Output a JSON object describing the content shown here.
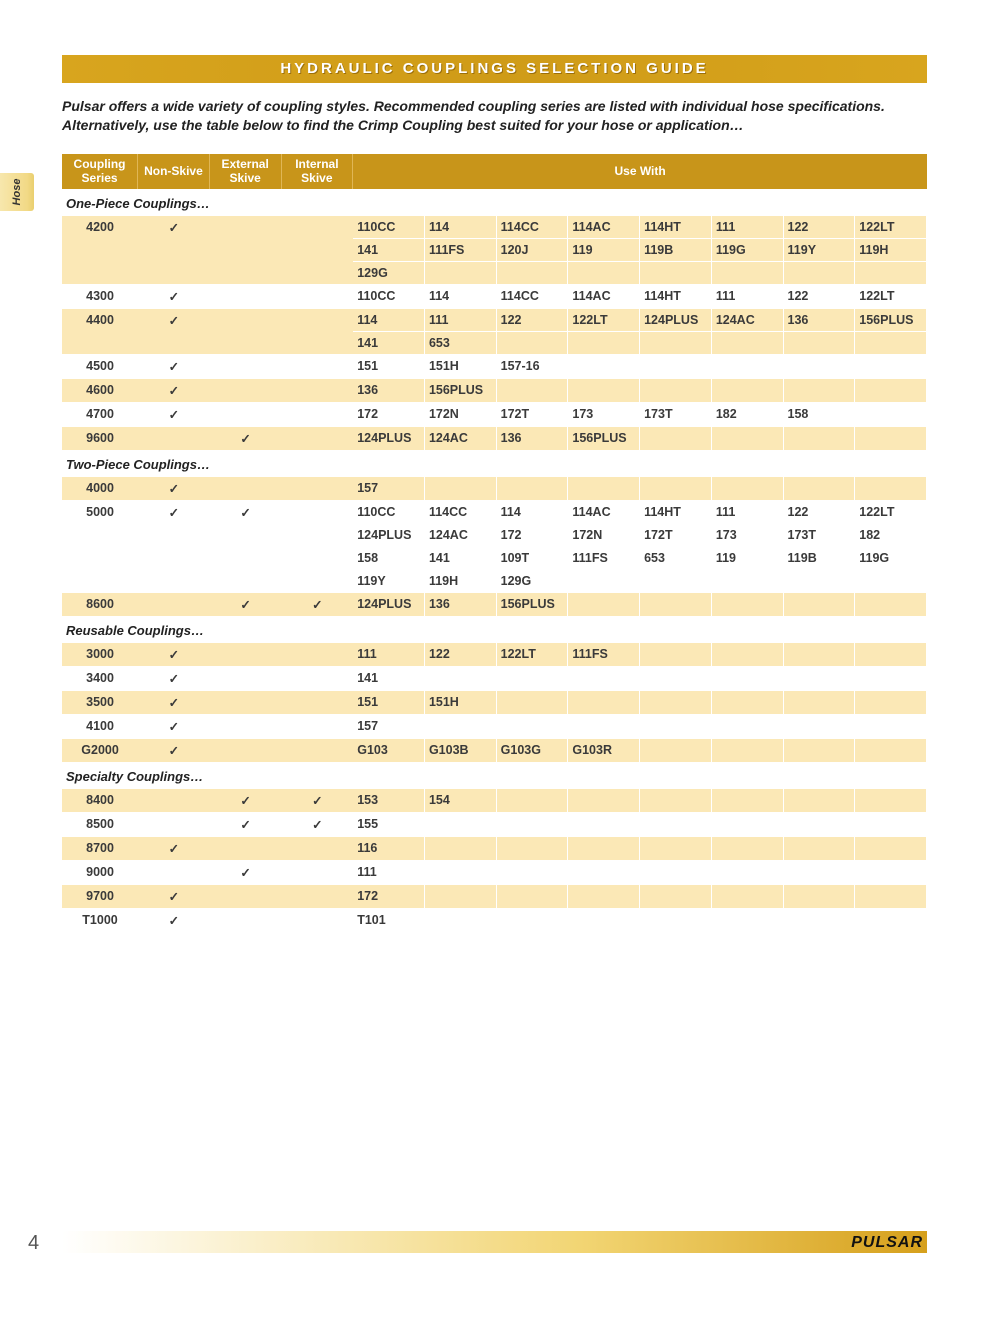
{
  "title": "HYDRAULIC COUPLINGS SELECTION GUIDE",
  "side_tab": "Hose",
  "intro": "Pulsar offers a wide variety of coupling styles. Recommended coupling series are listed with individual hose specifications. Alternatively, use the table below to find the Crimp Coupling best suited for your hose or application…",
  "page_number": "4",
  "brand": "PULSAR",
  "check_glyph": "✓",
  "colors": {
    "header_bg": "#c8951a",
    "header_text": "#ffffff",
    "row_odd_bg": "#fbe8b6",
    "row_even_bg": "#ffffff",
    "side_tab_bg": "#f2d986",
    "text": "#3a3a3a"
  },
  "columns": {
    "series": "Coupling Series",
    "non_skive": "Non-Skive",
    "ext_skive": "External Skive",
    "int_skive": "Internal Skive",
    "use_with": "Use With"
  },
  "use_with_col_count": 8,
  "sections": [
    {
      "title": "One-Piece Couplings…",
      "rows": [
        {
          "series": "4200",
          "ns": true,
          "es": false,
          "is": false,
          "use": [
            "110CC",
            "114",
            "114CC",
            "114AC",
            "114HT",
            "111",
            "122",
            "122LT",
            "141",
            "111FS",
            "120J",
            "119",
            "119B",
            "119G",
            "119Y",
            "119H",
            "129G"
          ]
        },
        {
          "series": "4300",
          "ns": true,
          "es": false,
          "is": false,
          "use": [
            "110CC",
            "114",
            "114CC",
            "114AC",
            "114HT",
            "111",
            "122",
            "122LT"
          ]
        },
        {
          "series": "4400",
          "ns": true,
          "es": false,
          "is": false,
          "use": [
            "114",
            "111",
            "122",
            "122LT",
            "124PLUS",
            "124AC",
            "136",
            "156PLUS",
            "141",
            "653"
          ]
        },
        {
          "series": "4500",
          "ns": true,
          "es": false,
          "is": false,
          "use": [
            "151",
            "151H",
            "157-16"
          ]
        },
        {
          "series": "4600",
          "ns": true,
          "es": false,
          "is": false,
          "use": [
            "136",
            "156PLUS"
          ]
        },
        {
          "series": "4700",
          "ns": true,
          "es": false,
          "is": false,
          "use": [
            "172",
            "172N",
            "172T",
            "173",
            "173T",
            "182",
            "158"
          ]
        },
        {
          "series": "9600",
          "ns": false,
          "es": true,
          "is": false,
          "use": [
            "124PLUS",
            "124AC",
            "136",
            "156PLUS"
          ]
        }
      ]
    },
    {
      "title": "Two-Piece Couplings…",
      "rows": [
        {
          "series": "4000",
          "ns": true,
          "es": false,
          "is": false,
          "use": [
            "157"
          ]
        },
        {
          "series": "5000",
          "ns": true,
          "es": true,
          "is": false,
          "use": [
            "110CC",
            "114CC",
            "114",
            "114AC",
            "114HT",
            "111",
            "122",
            "122LT",
            "124PLUS",
            "124AC",
            "172",
            "172N",
            "172T",
            "173",
            "173T",
            "182",
            "158",
            "141",
            "109T",
            "111FS",
            "653",
            "119",
            "119B",
            "119G",
            "119Y",
            "119H",
            "129G"
          ]
        },
        {
          "series": "8600",
          "ns": false,
          "es": true,
          "is": true,
          "use": [
            "124PLUS",
            "136",
            "156PLUS"
          ]
        }
      ]
    },
    {
      "title": "Reusable Couplings…",
      "rows": [
        {
          "series": "3000",
          "ns": true,
          "es": false,
          "is": false,
          "use": [
            "111",
            "122",
            "122LT",
            "111FS"
          ]
        },
        {
          "series": "3400",
          "ns": true,
          "es": false,
          "is": false,
          "use": [
            "141"
          ]
        },
        {
          "series": "3500",
          "ns": true,
          "es": false,
          "is": false,
          "use": [
            "151",
            "151H"
          ]
        },
        {
          "series": "4100",
          "ns": true,
          "es": false,
          "is": false,
          "use": [
            "157"
          ]
        },
        {
          "series": "G2000",
          "ns": true,
          "es": false,
          "is": false,
          "use": [
            "G103",
            "G103B",
            "G103G",
            "G103R"
          ]
        }
      ]
    },
    {
      "title": "Specialty Couplings…",
      "rows": [
        {
          "series": "8400",
          "ns": false,
          "es": true,
          "is": true,
          "use": [
            "153",
            "154"
          ]
        },
        {
          "series": "8500",
          "ns": false,
          "es": true,
          "is": true,
          "use": [
            "155"
          ]
        },
        {
          "series": "8700",
          "ns": true,
          "es": false,
          "is": false,
          "use": [
            "116"
          ]
        },
        {
          "series": "9000",
          "ns": false,
          "es": true,
          "is": false,
          "use": [
            "111"
          ]
        },
        {
          "series": "9700",
          "ns": true,
          "es": false,
          "is": false,
          "use": [
            "172"
          ]
        },
        {
          "series": "T1000",
          "ns": true,
          "es": false,
          "is": false,
          "use": [
            "T101"
          ]
        }
      ]
    }
  ]
}
